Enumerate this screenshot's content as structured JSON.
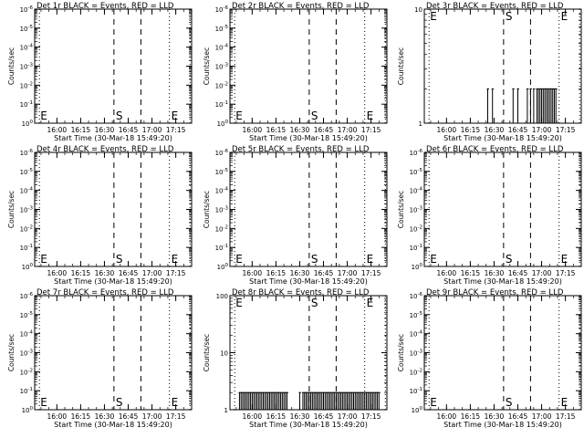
{
  "chart_data": [
    {
      "type": "line",
      "title": "Det 1r BLACK = Events, RED = LLD",
      "xlabel": "Start Time (30-Mar-18 15:49:20)",
      "ylabel": "Counts/sec",
      "x_ticks": [
        "16:00",
        "16:15",
        "16:30",
        "16:45",
        "17:00",
        "17:15"
      ],
      "y_scale": "log-negative",
      "y_ticks": [
        "10^0",
        "10^-1",
        "10^-2",
        "10^-3",
        "10^-4",
        "10^-5",
        "10^-6"
      ],
      "markers": [
        "E",
        "S",
        "E"
      ],
      "series": [
        {
          "color": "#000000",
          "points": []
        }
      ]
    },
    {
      "type": "line",
      "title": "Det 2r BLACK = Events, RED = LLD",
      "xlabel": "Start Time (30-Mar-18 15:49:20)",
      "ylabel": "Counts/sec",
      "x_ticks": [
        "16:00",
        "16:15",
        "16:30",
        "16:45",
        "17:00",
        "17:15"
      ],
      "y_scale": "log-negative",
      "y_ticks": [
        "10^0",
        "10^-1",
        "10^-2",
        "10^-3",
        "10^-4",
        "10^-5",
        "10^-6"
      ],
      "markers": [
        "E",
        "S",
        "E"
      ],
      "series": [
        {
          "color": "#000000",
          "points": []
        }
      ]
    },
    {
      "type": "line",
      "title": "Det 3r BLACK = Events, RED = LLD",
      "xlabel": "Start Time (30-Mar-18 15:49:20)",
      "ylabel": "Counts/sec",
      "x_ticks": [
        "16:00",
        "16:15",
        "16:30",
        "16:45",
        "17:00",
        "17:15"
      ],
      "y_scale": "log",
      "y_ticks": [
        "1",
        "10"
      ],
      "markers": [
        "E",
        "S",
        "E"
      ],
      "series": [
        {
          "color": "#000000",
          "points": [
            [
              "16:26",
              2
            ],
            [
              "16:29",
              2
            ],
            [
              "16:42",
              2
            ],
            [
              "16:45",
              2
            ],
            [
              "16:51",
              2
            ],
            [
              "16:53",
              2
            ],
            [
              "16:55",
              2
            ],
            [
              "16:57",
              2
            ],
            [
              "16:58",
              2
            ],
            [
              "16:59",
              2
            ],
            [
              "17:00",
              2
            ],
            [
              "17:01",
              2
            ],
            [
              "17:02",
              2
            ],
            [
              "17:03",
              2
            ],
            [
              "17:04",
              2
            ],
            [
              "17:05",
              2
            ],
            [
              "17:06",
              2
            ],
            [
              "17:07",
              2
            ],
            [
              "17:08",
              2
            ],
            [
              "17:09",
              2
            ]
          ]
        }
      ]
    },
    {
      "type": "line",
      "title": "Det 4r BLACK = Events, RED = LLD",
      "xlabel": "Start Time (30-Mar-18 15:49:20)",
      "ylabel": "Counts/sec",
      "x_ticks": [
        "16:00",
        "16:15",
        "16:30",
        "16:45",
        "17:00",
        "17:15"
      ],
      "y_scale": "log-negative",
      "y_ticks": [
        "10^0",
        "10^-1",
        "10^-2",
        "10^-3",
        "10^-4",
        "10^-5",
        "10^-6"
      ],
      "markers": [
        "E",
        "S",
        "E"
      ],
      "series": [
        {
          "color": "#000000",
          "points": []
        }
      ]
    },
    {
      "type": "line",
      "title": "Det 5r BLACK = Events, RED = LLD",
      "xlabel": "Start Time (30-Mar-18 15:49:20)",
      "ylabel": "Counts/sec",
      "x_ticks": [
        "16:00",
        "16:15",
        "16:30",
        "16:45",
        "17:00",
        "17:15"
      ],
      "y_scale": "log-negative",
      "y_ticks": [
        "10^0",
        "10^-1",
        "10^-2",
        "10^-3",
        "10^-4",
        "10^-5",
        "10^-6"
      ],
      "markers": [
        "E",
        "S",
        "E"
      ],
      "series": [
        {
          "color": "#000000",
          "points": []
        }
      ]
    },
    {
      "type": "line",
      "title": "Det 6r BLACK = Events, RED = LLD",
      "xlabel": "Start Time (30-Mar-18 15:49:20)",
      "ylabel": "Counts/sec",
      "x_ticks": [
        "16:00",
        "16:15",
        "16:30",
        "16:45",
        "17:00",
        "17:15"
      ],
      "y_scale": "log-negative",
      "y_ticks": [
        "10^0",
        "10^-1",
        "10^-2",
        "10^-3",
        "10^-4",
        "10^-5",
        "10^-6"
      ],
      "markers": [
        "E",
        "S",
        "E"
      ],
      "series": [
        {
          "color": "#000000",
          "points": []
        }
      ]
    },
    {
      "type": "line",
      "title": "Det 7r BLACK = Events, RED = LLD",
      "xlabel": "Start Time (30-Mar-18 15:49:20)",
      "ylabel": "Counts/sec",
      "x_ticks": [
        "16:00",
        "16:15",
        "16:30",
        "16:45",
        "17:00",
        "17:15"
      ],
      "y_scale": "log-negative",
      "y_ticks": [
        "10^0",
        "10^-1",
        "10^-2",
        "10^-3",
        "10^-4",
        "10^-5",
        "10^-6"
      ],
      "markers": [
        "E",
        "S",
        "E"
      ],
      "series": [
        {
          "color": "#000000",
          "points": []
        }
      ]
    },
    {
      "type": "line",
      "title": "Det 8r BLACK = Events, RED = LLD",
      "xlabel": "Start Time (30-Mar-18 15:49:20)",
      "ylabel": "Counts/sec",
      "x_ticks": [
        "16:00",
        "16:15",
        "16:30",
        "16:45",
        "17:00",
        "17:15"
      ],
      "y_scale": "log",
      "y_ticks": [
        "1",
        "10",
        "100"
      ],
      "markers": [
        "E",
        "S",
        "E"
      ],
      "series": [
        {
          "color": "#000000",
          "points": [
            [
              "15:52",
              2
            ],
            [
              "15:53",
              2
            ],
            [
              "15:54",
              2
            ],
            [
              "15:55",
              2
            ],
            [
              "15:56",
              2
            ],
            [
              "15:57",
              2
            ],
            [
              "15:58",
              2
            ],
            [
              "15:59",
              2
            ],
            [
              "16:00",
              2
            ],
            [
              "16:01",
              2
            ],
            [
              "16:02",
              2
            ],
            [
              "16:03",
              2
            ],
            [
              "16:04",
              2
            ],
            [
              "16:05",
              2
            ],
            [
              "16:06",
              2
            ],
            [
              "16:07",
              2
            ],
            [
              "16:08",
              2
            ],
            [
              "16:09",
              2
            ],
            [
              "16:10",
              2
            ],
            [
              "16:11",
              2
            ],
            [
              "16:12",
              2
            ],
            [
              "16:13",
              2
            ],
            [
              "16:14",
              2
            ],
            [
              "16:15",
              2
            ],
            [
              "16:16",
              2
            ],
            [
              "16:17",
              2
            ],
            [
              "16:18",
              2
            ],
            [
              "16:19",
              2
            ],
            [
              "16:20",
              2
            ],
            [
              "16:21",
              2
            ],
            [
              "16:22",
              2
            ],
            [
              "16:30",
              2
            ],
            [
              "16:32",
              2
            ],
            [
              "16:33",
              2
            ],
            [
              "16:34",
              2
            ],
            [
              "16:35",
              2
            ],
            [
              "16:36",
              2
            ],
            [
              "16:37",
              2
            ],
            [
              "16:38",
              2
            ],
            [
              "16:39",
              2
            ],
            [
              "16:40",
              2
            ],
            [
              "16:41",
              2
            ],
            [
              "16:42",
              2
            ],
            [
              "16:43",
              2
            ],
            [
              "16:44",
              2
            ],
            [
              "16:45",
              2
            ],
            [
              "16:46",
              2
            ],
            [
              "16:47",
              2
            ],
            [
              "16:48",
              2
            ],
            [
              "16:49",
              2
            ],
            [
              "16:50",
              2
            ],
            [
              "16:51",
              2
            ],
            [
              "16:52",
              2
            ],
            [
              "16:53",
              2
            ],
            [
              "16:54",
              2
            ],
            [
              "16:55",
              2
            ],
            [
              "16:56",
              2
            ],
            [
              "16:57",
              2
            ],
            [
              "16:58",
              2
            ],
            [
              "16:59",
              2
            ],
            [
              "17:00",
              2
            ],
            [
              "17:01",
              2
            ],
            [
              "17:02",
              2
            ],
            [
              "17:03",
              2
            ],
            [
              "17:04",
              2
            ],
            [
              "17:05",
              2
            ],
            [
              "17:06",
              2
            ],
            [
              "17:07",
              2
            ],
            [
              "17:08",
              2
            ],
            [
              "17:09",
              2
            ],
            [
              "17:10",
              2
            ],
            [
              "17:11",
              2
            ],
            [
              "17:12",
              2
            ],
            [
              "17:13",
              2
            ],
            [
              "17:14",
              2
            ],
            [
              "17:15",
              2
            ],
            [
              "17:16",
              2
            ],
            [
              "17:17",
              2
            ],
            [
              "17:18",
              2
            ],
            [
              "17:19",
              2
            ],
            [
              "17:20",
              2
            ]
          ]
        }
      ]
    },
    {
      "type": "line",
      "title": "Det 9r BLACK = Events, RED = LLD",
      "xlabel": "Start Time (30-Mar-18 15:49:20)",
      "ylabel": "Counts/sec",
      "x_ticks": [
        "16:00",
        "16:15",
        "16:30",
        "16:45",
        "17:00",
        "17:15"
      ],
      "y_scale": "log-negative",
      "y_ticks": [
        "10^0",
        "10^-1",
        "10^-2",
        "10^-3",
        "10^-4",
        "10^-5",
        "10^-6"
      ],
      "markers": [
        "E",
        "S",
        "E"
      ],
      "series": [
        {
          "color": "#000000",
          "points": []
        }
      ]
    }
  ]
}
